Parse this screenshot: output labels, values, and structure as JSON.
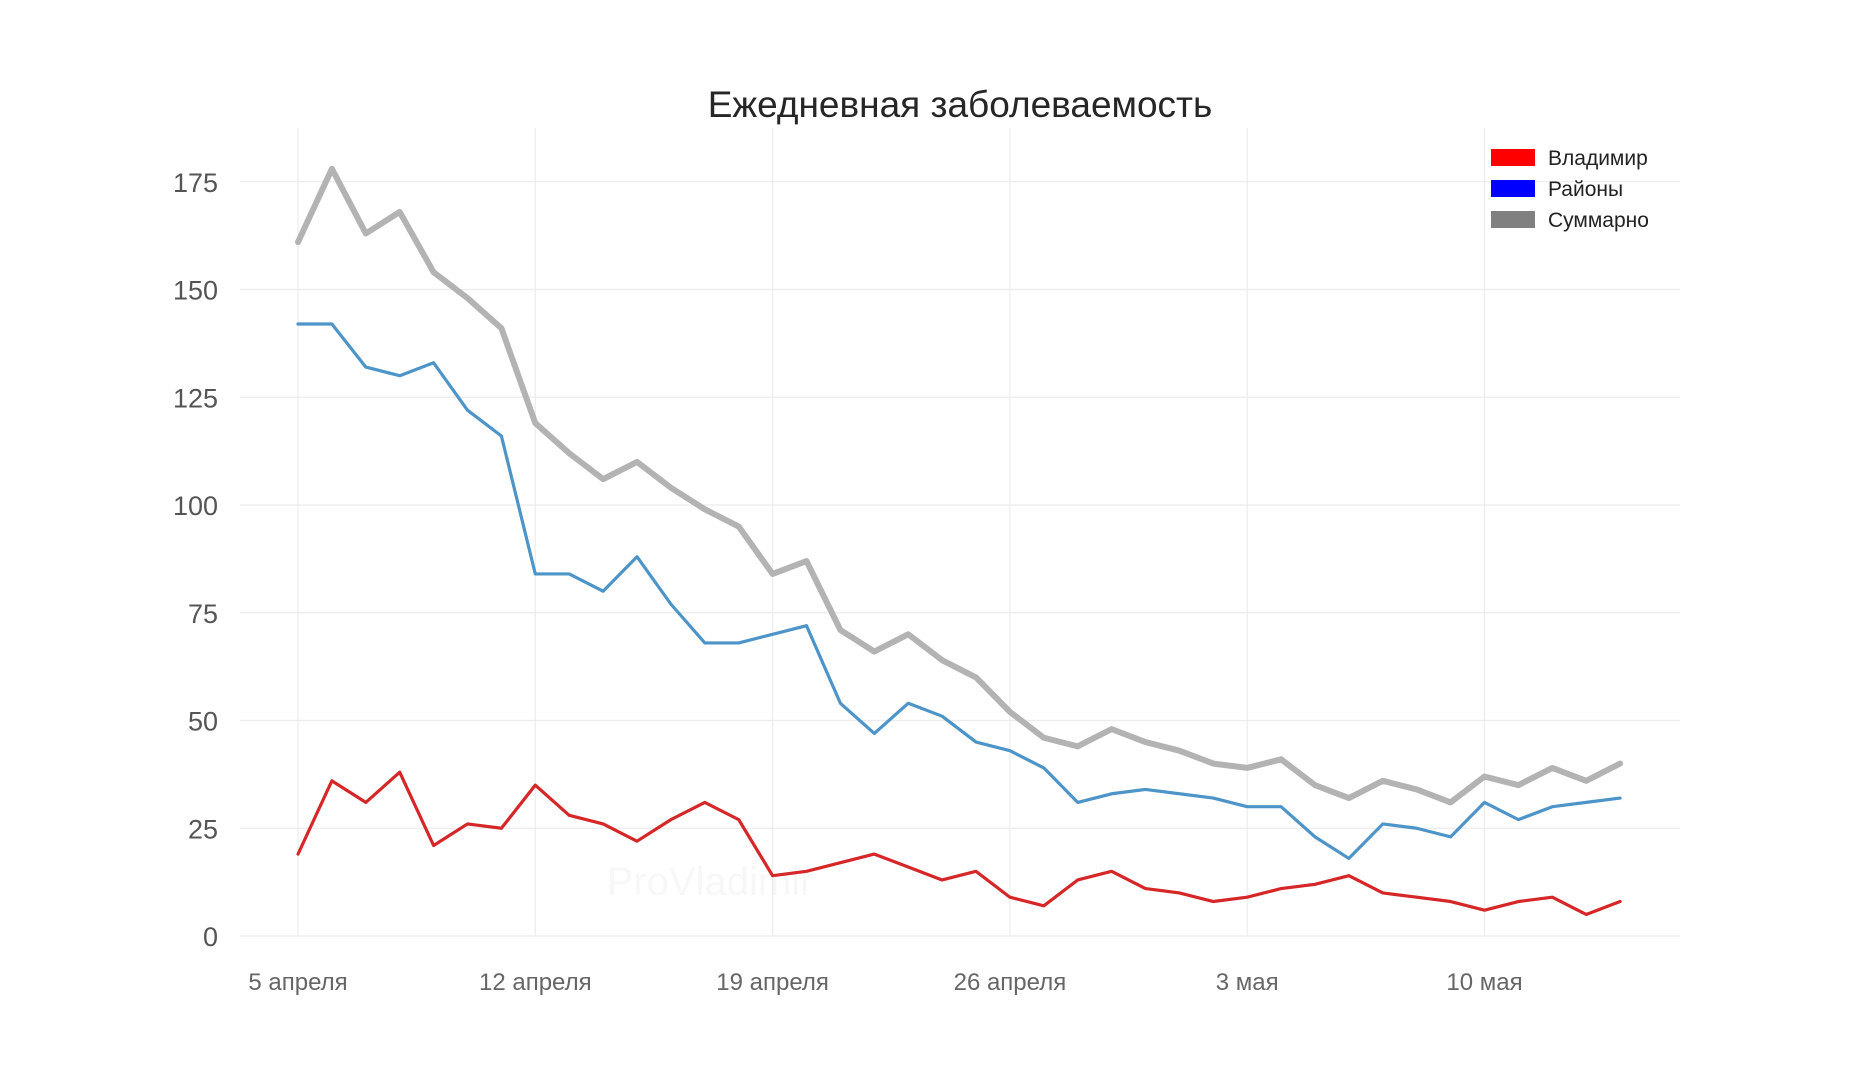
{
  "chart_data": {
    "type": "line",
    "title": "Ежедневная заболеваемость",
    "xlabel": "",
    "ylabel": "",
    "xlim": [
      "2020-04-05",
      "2020-05-14"
    ],
    "ylim": [
      0,
      180
    ],
    "y_ticks": [
      0,
      25,
      50,
      75,
      100,
      125,
      150,
      175
    ],
    "x_ticks": [
      {
        "date": "2020-04-05",
        "label": "5 апреля"
      },
      {
        "date": "2020-04-12",
        "label": "12 апреля"
      },
      {
        "date": "2020-04-19",
        "label": "19 апреля"
      },
      {
        "date": "2020-04-26",
        "label": "26 апреля"
      },
      {
        "date": "2020-05-03",
        "label": "3 мая"
      },
      {
        "date": "2020-05-10",
        "label": "10 мая"
      }
    ],
    "grid": true,
    "legend_position": "top-right",
    "dates": [
      "2020-04-05",
      "2020-04-06",
      "2020-04-07",
      "2020-04-08",
      "2020-04-09",
      "2020-04-10",
      "2020-04-11",
      "2020-04-12",
      "2020-04-13",
      "2020-04-14",
      "2020-04-15",
      "2020-04-16",
      "2020-04-17",
      "2020-04-18",
      "2020-04-19",
      "2020-04-20",
      "2020-04-21",
      "2020-04-22",
      "2020-04-23",
      "2020-04-24",
      "2020-04-25",
      "2020-04-26",
      "2020-04-27",
      "2020-04-28",
      "2020-04-29",
      "2020-04-30",
      "2020-05-01",
      "2020-05-02",
      "2020-05-03",
      "2020-05-04",
      "2020-05-05",
      "2020-05-06",
      "2020-05-07",
      "2020-05-08",
      "2020-05-09",
      "2020-05-10",
      "2020-05-11",
      "2020-05-12",
      "2020-05-13",
      "2020-05-14"
    ],
    "series": [
      {
        "name": "Суммарно",
        "color": "#b3b3b3",
        "legend_color": "#808080",
        "values": [
          161,
          178,
          163,
          168,
          154,
          148,
          141,
          119,
          112,
          106,
          110,
          104,
          99,
          95,
          84,
          87,
          71,
          66,
          70,
          64,
          60,
          52,
          46,
          44,
          48,
          45,
          43,
          40,
          39,
          41,
          35,
          32,
          36,
          34,
          31,
          37,
          35,
          39,
          36,
          40
        ]
      },
      {
        "name": "Районы",
        "color": "#4d94c8",
        "legend_color": "#0000ff",
        "values": [
          142,
          142,
          132,
          130,
          133,
          122,
          116,
          84,
          84,
          80,
          88,
          77,
          68,
          68,
          70,
          72,
          54,
          47,
          54,
          51,
          45,
          43,
          39,
          31,
          33,
          34,
          33,
          32,
          30,
          30,
          23,
          18,
          26,
          25,
          23,
          31,
          27,
          30,
          31,
          32
        ]
      },
      {
        "name": "Владимир",
        "color": "#d62728",
        "legend_color": "#ff0000",
        "values": [
          19,
          36,
          31,
          38,
          21,
          26,
          25,
          35,
          28,
          26,
          22,
          27,
          31,
          27,
          14,
          15,
          17,
          19,
          16,
          13,
          15,
          9,
          7,
          13,
          15,
          11,
          10,
          8,
          9,
          11,
          12,
          14,
          10,
          9,
          8,
          6,
          8,
          9,
          5,
          8
        ]
      }
    ],
    "legend_order": [
      "Владимир",
      "Районы",
      "Суммарно"
    ],
    "watermark": "ProVladimir"
  }
}
